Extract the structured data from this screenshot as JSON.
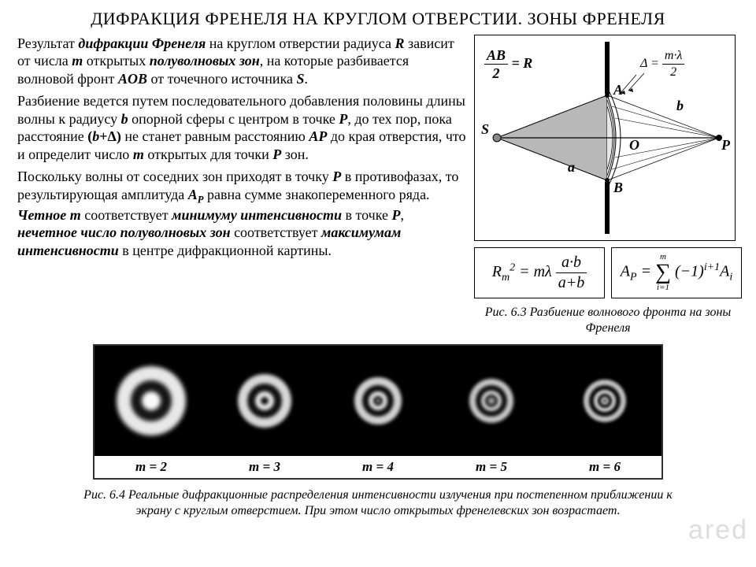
{
  "title": "ДИФРАКЦИЯ ФРЕНЕЛЯ НА КРУГЛОМ ОТВЕРСТИИ.  ЗОНЫ ФРЕНЕЛЯ",
  "para1": "Результат <i><b>дифракции Френеля</b></i> на круглом отверстии радиуса <i><b>R</b></i> зависит от числа <i><b>m</b></i> открытых <i><b>полуволновых зон</b></i>, на которые разбивается волновой фронт <i><b>AOB</b></i> от точечного источника <i><b>S</b></i>.",
  "para2": "Разбиение ведется путем последовательного добавления половины длины волны к радиусу <i><b>b</b></i> опорной сферы с центром в точке <i><b>P</b></i>, до тех пор, пока расстояние <b>(<i>b</i>+Δ)</b> не станет равным расстоянию <i><b>AP</b></i> до края отверстия, что и определит число <i><b>m</b></i> открытых для точки <i><b>P</b></i> зон.",
  "para3": "Поскольку волны от соседних зон приходят в точку <i><b>P</b></i> в противофазах, то результирующая амплитуда <i><b>A<sub>P</sub></b></i> равна сумме знакопеременного ряда. <i><b>Четное m</b></i> соответствует <i><b>минимуму интенсивности</b></i> в точке <i><b>P</b></i>, <i><b>нечетное число полуволновых зон</b></i> соответствует <i><b>максимумам интенсивности</b></i> в центре дифракционной картины.",
  "diagram": {
    "formula_ab2r": {
      "ab": "AB",
      "two": "2",
      "eq": "= R"
    },
    "formula_delta": {
      "delta": "Δ =",
      "num": "m·λ",
      "den": "2"
    },
    "labels": {
      "S": "S",
      "A": "A",
      "B": "B",
      "O": "O",
      "P": "P",
      "a": "a",
      "b": "b"
    }
  },
  "formula1": {
    "lhs": "R",
    "sub": "m",
    "sup": "2",
    "mid": " = mλ",
    "num": "a·b",
    "den": "a+b"
  },
  "formula2": {
    "lhs": "A",
    "sub": "P",
    "eq": " = ",
    "upper": "m",
    "lower": "i=1",
    "rhs": "(−1)",
    "exp": "i+1",
    "tail": "A",
    "tailsub": "i"
  },
  "caption1": "Рис. 6.3 Разбиение волнового фронта на зоны Френеля",
  "patterns": {
    "labels": [
      "m = 2",
      "m = 3",
      "m = 4",
      "m = 5",
      "m = 6"
    ],
    "config": [
      {
        "size": 110,
        "rings": [
          {
            "r": 55,
            "c": "#000"
          },
          {
            "r": 44,
            "c": "#e8e8e8"
          },
          {
            "r": 26,
            "c": "#151515"
          },
          {
            "r": 12,
            "c": "#fafafa"
          }
        ],
        "blur": 3
      },
      {
        "size": 88,
        "rings": [
          {
            "r": 44,
            "c": "#000"
          },
          {
            "r": 34,
            "c": "#d8d8d8"
          },
          {
            "r": 22,
            "c": "#101010"
          },
          {
            "r": 12,
            "c": "#e8e8e8"
          },
          {
            "r": 5,
            "c": "#0a0a0a"
          }
        ],
        "blur": 2.5
      },
      {
        "size": 78,
        "rings": [
          {
            "r": 39,
            "c": "#000"
          },
          {
            "r": 30,
            "c": "#d0d0d0"
          },
          {
            "r": 20,
            "c": "#0d0d0d"
          },
          {
            "r": 12,
            "c": "#e0e0e0"
          },
          {
            "r": 6,
            "c": "#080808"
          },
          {
            "r": 2,
            "c": "#f0f0f0"
          }
        ],
        "blur": 2.2
      },
      {
        "size": 72,
        "rings": [
          {
            "r": 36,
            "c": "#000"
          },
          {
            "r": 28,
            "c": "#c8c8c8"
          },
          {
            "r": 20,
            "c": "#0c0c0c"
          },
          {
            "r": 13,
            "c": "#d8d8d8"
          },
          {
            "r": 8,
            "c": "#080808"
          },
          {
            "r": 4,
            "c": "#e8e8e8"
          },
          {
            "r": 1.5,
            "c": "#000"
          }
        ],
        "blur": 2
      },
      {
        "size": 70,
        "rings": [
          {
            "r": 35,
            "c": "#000"
          },
          {
            "r": 27,
            "c": "#c0c0c0"
          },
          {
            "r": 20,
            "c": "#0b0b0b"
          },
          {
            "r": 14,
            "c": "#d0d0d0"
          },
          {
            "r": 9,
            "c": "#070707"
          },
          {
            "r": 5,
            "c": "#e0e0e0"
          },
          {
            "r": 2,
            "c": "#050505"
          }
        ],
        "blur": 1.8
      }
    ]
  },
  "caption2": "Рис. 6.4 Реальные дифракционные распределения интенсивности излучения при постепенном приближении к экрану с круглым отверстием. При этом число открытых френелевских зон возрастает.",
  "watermark": "ared"
}
